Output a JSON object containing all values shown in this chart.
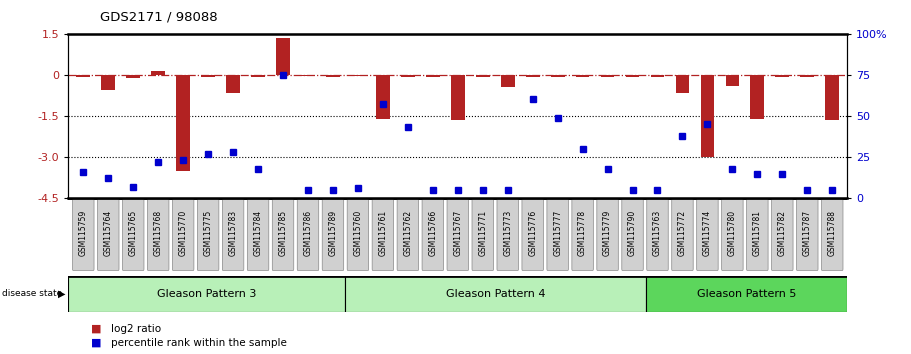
{
  "title": "GDS2171 / 98088",
  "samples": [
    "GSM115759",
    "GSM115764",
    "GSM115765",
    "GSM115768",
    "GSM115770",
    "GSM115775",
    "GSM115783",
    "GSM115784",
    "GSM115785",
    "GSM115786",
    "GSM115789",
    "GSM115760",
    "GSM115761",
    "GSM115762",
    "GSM115766",
    "GSM115767",
    "GSM115771",
    "GSM115773",
    "GSM115776",
    "GSM115777",
    "GSM115778",
    "GSM115779",
    "GSM115790",
    "GSM115763",
    "GSM115772",
    "GSM115774",
    "GSM115780",
    "GSM115781",
    "GSM115782",
    "GSM115787",
    "GSM115788"
  ],
  "log2_ratio": [
    -0.08,
    -0.55,
    -0.1,
    0.12,
    -3.5,
    -0.08,
    -0.65,
    -0.07,
    1.35,
    -0.05,
    -0.07,
    -0.06,
    -1.6,
    -0.08,
    -0.07,
    -1.65,
    -0.07,
    -0.45,
    -0.07,
    -0.07,
    -0.07,
    -0.07,
    -0.07,
    -0.08,
    -0.65,
    -3.0,
    -0.4,
    -1.6,
    -0.07,
    -0.08,
    -1.65
  ],
  "percentile": [
    16,
    12,
    7,
    22,
    23,
    27,
    28,
    18,
    75,
    5,
    5,
    6,
    57,
    43,
    5,
    5,
    5,
    5,
    60,
    49,
    30,
    18,
    5,
    5,
    38,
    45,
    18,
    15,
    15,
    5,
    5
  ],
  "group_boundaries": [
    0,
    11,
    23,
    31
  ],
  "group_labels": [
    "Gleason Pattern 3",
    "Gleason Pattern 4",
    "Gleason Pattern 5"
  ],
  "group_colors_light": "#b8f0b8",
  "group_color_dark": "#5cd65c",
  "bar_color": "#b22222",
  "dot_color": "#0000cd",
  "ylim_left": [
    -4.5,
    1.5
  ],
  "ylim_right": [
    0,
    100
  ],
  "yticks_left": [
    -4.5,
    -3.0,
    -1.5,
    0,
    1.5
  ],
  "yticks_right": [
    0,
    25,
    50,
    75,
    100
  ]
}
